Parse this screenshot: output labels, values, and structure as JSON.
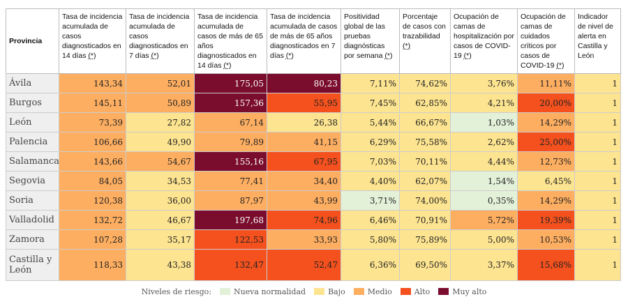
{
  "table": {
    "headers": [
      {
        "text": "Provincia"
      },
      {
        "text": "Tasa de incidencia acumulada de casos diagnosticados en 14 días",
        "note": "(*)"
      },
      {
        "text": "Tasa de incidencia acumulada de casos diagnosticados en 7 días",
        "note": "(*)"
      },
      {
        "text": "Tasa de incidencia acumulada de casos de más de 65 años diagnosticados en 14 días",
        "note": "(*)"
      },
      {
        "text": "Tasa de incidencia acumulada de casos de más de 65 años diagnosticados en 7 días",
        "note": "(*)"
      },
      {
        "text": "Positividad global de las pruebas diagnósticas por semana",
        "note": "(*)"
      },
      {
        "text": "Porcentaje de casos con trazabilidad",
        "note": "(*)"
      },
      {
        "text": "Ocupación de camas de hospitalización por casos de COVID-19",
        "note": "(*)"
      },
      {
        "text": "Ocupación de camas de cuidados críticos por casos de COVID-19",
        "note": "(*)"
      },
      {
        "text": "Indicador de nivel de alerta en Castilla y León"
      }
    ],
    "rows": [
      {
        "province": "Ávila",
        "cells": [
          "143,34",
          "52,01",
          "175,05",
          "80,23",
          "7,11%",
          "74,62%",
          "3,76%",
          "11,11%",
          "1"
        ],
        "colors": [
          "#fdae61",
          "#fdae61",
          "#7a0c2e",
          "#7a0c2e",
          "#fde490",
          "#fde490",
          "#fde490",
          "#fdae61",
          "#fde490"
        ]
      },
      {
        "province": "Burgos",
        "cells": [
          "145,11",
          "50,89",
          "157,36",
          "55,95",
          "7,45%",
          "62,85%",
          "4,21%",
          "20,00%",
          "1"
        ],
        "colors": [
          "#fdae61",
          "#fdae61",
          "#7a0c2e",
          "#f4511e",
          "#fde490",
          "#fde490",
          "#fde490",
          "#f4511e",
          "#fde490"
        ]
      },
      {
        "province": "León",
        "cells": [
          "73,39",
          "27,82",
          "67,14",
          "26,38",
          "5,44%",
          "66,67%",
          "1,03%",
          "14,29%",
          "1"
        ],
        "colors": [
          "#fdae61",
          "#fde490",
          "#fdae61",
          "#fde490",
          "#fde490",
          "#fde490",
          "#e3f1d9",
          "#fdae61",
          "#fde490"
        ]
      },
      {
        "province": "Palencia",
        "cells": [
          "106,66",
          "49,90",
          "79,89",
          "41,15",
          "6,29%",
          "75,58%",
          "2,62%",
          "25,00%",
          "1"
        ],
        "colors": [
          "#fdae61",
          "#fde490",
          "#fdae61",
          "#fdae61",
          "#fde490",
          "#fde490",
          "#fde490",
          "#f4511e",
          "#fde490"
        ]
      },
      {
        "province": "Salamanca",
        "cells": [
          "143,66",
          "54,67",
          "155,16",
          "67,95",
          "7,03%",
          "70,11%",
          "4,44%",
          "12,73%",
          "1"
        ],
        "colors": [
          "#fdae61",
          "#fdae61",
          "#7a0c2e",
          "#f4511e",
          "#fde490",
          "#fde490",
          "#fde490",
          "#fdae61",
          "#fde490"
        ]
      },
      {
        "province": "Segovia",
        "cells": [
          "84,05",
          "34,53",
          "77,41",
          "34,40",
          "4,40%",
          "62,07%",
          "1,54%",
          "6,45%",
          "1"
        ],
        "colors": [
          "#fdae61",
          "#fde490",
          "#fdae61",
          "#fdae61",
          "#fde490",
          "#fde490",
          "#e3f1d9",
          "#fde490",
          "#fde490"
        ]
      },
      {
        "province": "Soria",
        "cells": [
          "120,38",
          "36,00",
          "87,97",
          "43,99",
          "3,71%",
          "74,00%",
          "0,35%",
          "14,29%",
          "1"
        ],
        "colors": [
          "#fdae61",
          "#fde490",
          "#fdae61",
          "#fdae61",
          "#e3f1d9",
          "#fde490",
          "#e3f1d9",
          "#fdae61",
          "#fde490"
        ]
      },
      {
        "province": "Valladolid",
        "cells": [
          "132,72",
          "46,67",
          "197,68",
          "74,96",
          "6,46%",
          "70,91%",
          "5,72%",
          "19,39%",
          "1"
        ],
        "colors": [
          "#fdae61",
          "#fde490",
          "#7a0c2e",
          "#f4511e",
          "#fde490",
          "#fde490",
          "#fdae61",
          "#f4511e",
          "#fde490"
        ]
      },
      {
        "province": "Zamora",
        "cells": [
          "107,28",
          "35,17",
          "122,53",
          "33,93",
          "5,80%",
          "75,89%",
          "5,00%",
          "10,53%",
          "1"
        ],
        "colors": [
          "#fdae61",
          "#fde490",
          "#f4511e",
          "#fdae61",
          "#fde490",
          "#fde490",
          "#fde490",
          "#fdae61",
          "#fde490"
        ]
      },
      {
        "province": "Castilla y León",
        "cells": [
          "118,33",
          "43,38",
          "132,47",
          "52,47",
          "6,36%",
          "69,50%",
          "3,37%",
          "15,68%",
          "1"
        ],
        "colors": [
          "#fdae61",
          "#fde490",
          "#f4511e",
          "#f4511e",
          "#fde490",
          "#fde490",
          "#fde490",
          "#f4511e",
          "#fde490"
        ]
      }
    ]
  },
  "legend": {
    "title": "Niveles de riesgo:",
    "items": [
      {
        "name": "Nueva normalidad",
        "color": "#e3f1d9"
      },
      {
        "name": "Bajo",
        "color": "#fde490"
      },
      {
        "name": "Medio",
        "color": "#fdae61"
      },
      {
        "name": "Alto",
        "color": "#f4511e"
      },
      {
        "name": "Muy alto",
        "color": "#7a0c2e"
      }
    ]
  }
}
